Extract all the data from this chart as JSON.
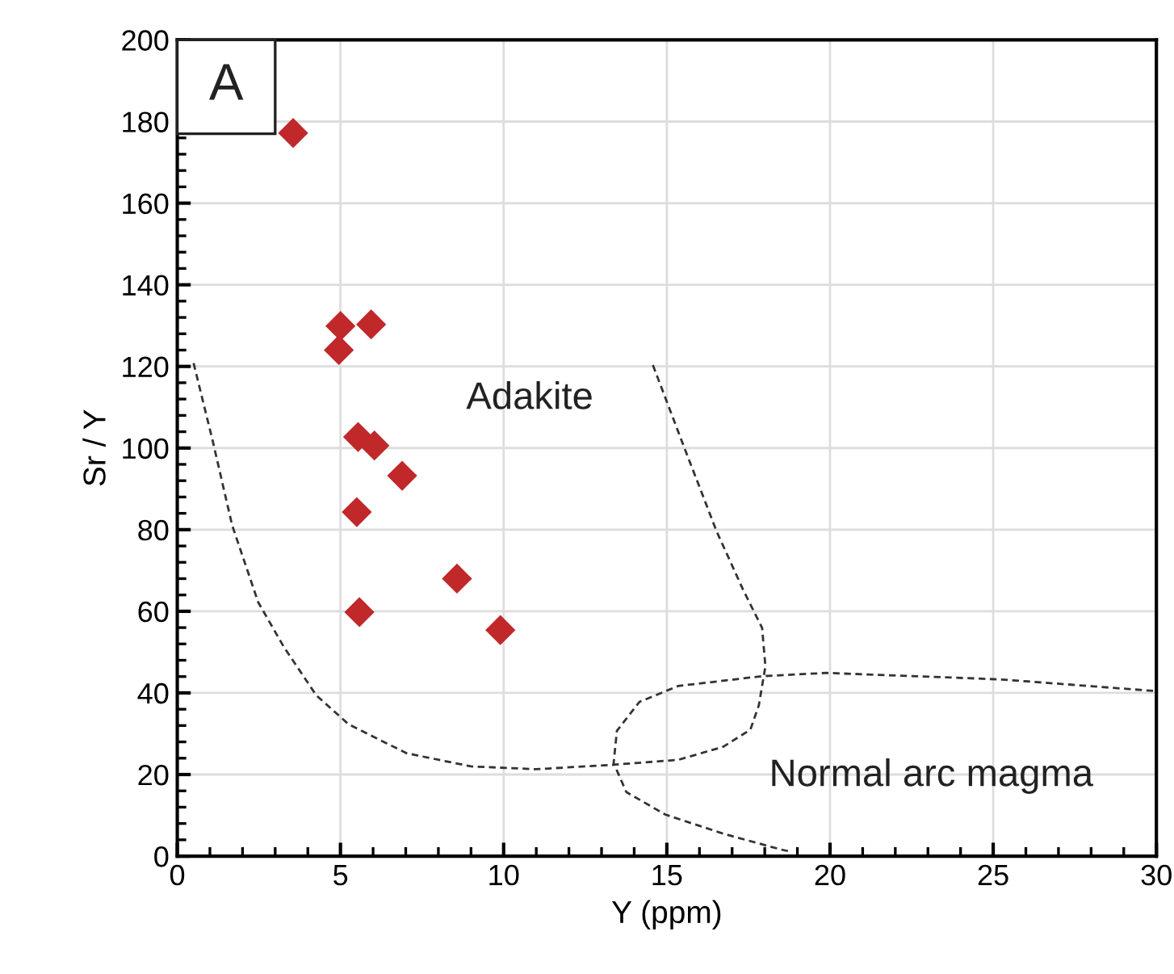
{
  "chart_data": {
    "type": "scatter",
    "xlabel": "Y (ppm)",
    "ylabel": "Sr / Y",
    "xlim": [
      0,
      30
    ],
    "xticks": [
      0,
      5,
      10,
      15,
      20,
      25,
      30
    ],
    "ylim": [
      0,
      200
    ],
    "yticks": [
      0,
      20,
      40,
      60,
      80,
      100,
      120,
      140,
      160,
      180,
      200
    ],
    "grid": true,
    "annotations": [
      "A",
      "Adakite",
      "Normal arc magma"
    ],
    "series": [
      {
        "color": "#c0282a",
        "marker": "diamond",
        "x": [
          3.55,
          5.0,
          5.94,
          4.95,
          5.54,
          6.04,
          6.89,
          5.5,
          8.57,
          5.58,
          9.9
        ],
        "values": [
          177.2,
          129.9,
          130.3,
          124,
          102.7,
          100.6,
          93.2,
          84.3,
          68.0,
          59.8,
          55.4
        ]
      },
      {
        "type": "line",
        "color": "#333333",
        "marker": "none",
        "line_style": "dashed",
        "x": [
          0.5,
          1.09,
          1.68,
          2.48,
          3.27,
          4.26,
          5.25,
          7.03,
          9.0,
          10.99,
          13.37,
          15.35,
          16.73,
          17.56,
          17.82,
          18.02,
          17.92,
          17.33,
          16.53,
          15.54,
          14.55
        ],
        "values": [
          120.8,
          101.6,
          81.1,
          62.2,
          51.2,
          39.4,
          32.3,
          25.2,
          22.0,
          21.3,
          22.4,
          23.6,
          26.8,
          31.0,
          37.0,
          46.5,
          55.9,
          65.4,
          79.5,
          100,
          120.8
        ]
      },
      {
        "type": "line",
        "color": "#333333",
        "marker": "none",
        "line_style": "dashed",
        "x": [
          29.9,
          25.25,
          19.9,
          17.92,
          15.35,
          14.16,
          13.47,
          13.37,
          13.76,
          14.95,
          16.73,
          18.51,
          18.8
        ],
        "values": [
          40.5,
          43.3,
          44.9,
          44.1,
          41.7,
          37.8,
          30.7,
          22.8,
          15.7,
          10.2,
          5.5,
          1.6,
          1.1
        ]
      }
    ]
  }
}
